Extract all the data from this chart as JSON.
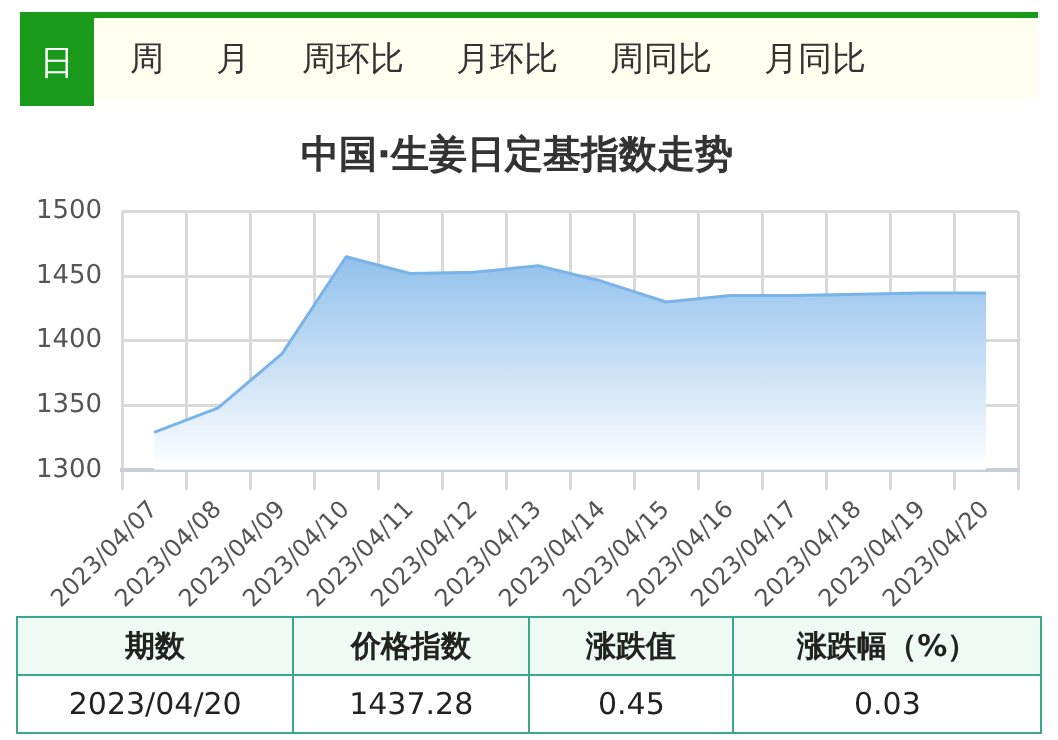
{
  "chart_data": {
    "type": "area",
    "title": "中国·生姜日定基指数走势",
    "categories": [
      "2023/04/07",
      "2023/04/08",
      "2023/04/09",
      "2023/04/10",
      "2023/04/11",
      "2023/04/12",
      "2023/04/13",
      "2023/04/14",
      "2023/04/15",
      "2023/04/16",
      "2023/04/17",
      "2023/04/18",
      "2023/04/19",
      "2023/04/20"
    ],
    "series": [
      {
        "color": "#7ab3e8",
        "values": [
          1329,
          1348,
          1390,
          1465,
          1452,
          1453,
          1458,
          1446,
          1430,
          1435,
          1435,
          1436,
          1437,
          1437
        ]
      }
    ],
    "ylim": [
      1300,
      1500
    ],
    "yticks": [
      1300,
      1350,
      1400,
      1450,
      1500
    ],
    "grid": true,
    "legend": false,
    "annotations": [
      "日",
      "周",
      "月",
      "周环比",
      "月环比",
      "周同比",
      "月同比",
      "期数",
      "价格指数",
      "涨跌值",
      "涨跌幅（%）",
      "2023/04/20",
      "1437.28",
      "0.45",
      "0.03"
    ]
  }
}
